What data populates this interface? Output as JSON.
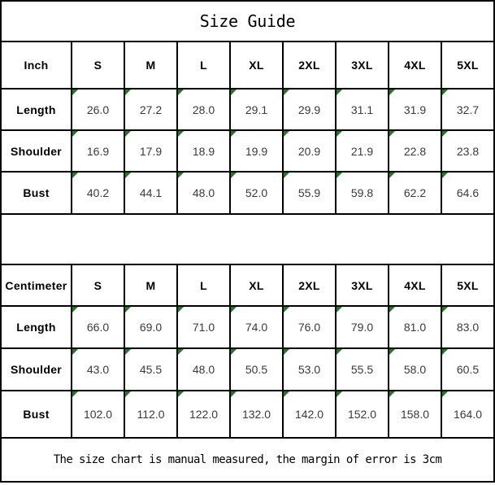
{
  "title": "Size Guide",
  "note": "The size chart is manual measured, the margin of error is 3cm",
  "tables": [
    {
      "unit_label": "Inch",
      "sizes": [
        "S",
        "M",
        "L",
        "XL",
        "2XL",
        "3XL",
        "4XL",
        "5XL"
      ],
      "rows": [
        {
          "label": "Length",
          "values": [
            "26.0",
            "27.2",
            "28.0",
            "29.1",
            "29.9",
            "31.1",
            "31.9",
            "32.7"
          ]
        },
        {
          "label": "Shoulder",
          "values": [
            "16.9",
            "17.9",
            "18.9",
            "19.9",
            "20.9",
            "21.9",
            "22.8",
            "23.8"
          ]
        },
        {
          "label": "Bust",
          "values": [
            "40.2",
            "44.1",
            "48.0",
            "52.0",
            "55.9",
            "59.8",
            "62.2",
            "64.6"
          ]
        }
      ]
    },
    {
      "unit_label": "Centimeter",
      "sizes": [
        "S",
        "M",
        "L",
        "XL",
        "2XL",
        "3XL",
        "4XL",
        "5XL"
      ],
      "rows": [
        {
          "label": "Length",
          "values": [
            "66.0",
            "69.0",
            "71.0",
            "74.0",
            "76.0",
            "79.0",
            "81.0",
            "83.0"
          ]
        },
        {
          "label": "Shoulder",
          "values": [
            "43.0",
            "45.5",
            "48.0",
            "50.5",
            "53.0",
            "55.5",
            "58.0",
            "60.5"
          ]
        },
        {
          "label": "Bust",
          "values": [
            "102.0",
            "112.0",
            "122.0",
            "132.0",
            "142.0",
            "152.0",
            "158.0",
            "164.0"
          ]
        }
      ]
    }
  ],
  "icons": {
    "cell_corner_marker": "comment-corner-triangle"
  },
  "colors": {
    "marker_green": "#1e7e1e",
    "border": "#000000",
    "value_text": "#3a3a3a",
    "background": "#ffffff"
  }
}
